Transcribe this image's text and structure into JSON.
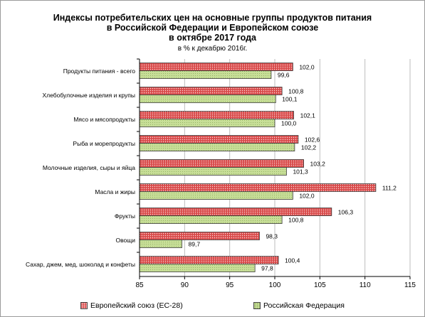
{
  "chart_data": {
    "type": "bar",
    "orientation": "horizontal",
    "title_lines": [
      "Индексы потребительских цен на основные группы продуктов питания",
      "в Российской Федерации и Европейском союзе",
      "в октябре 2017 года"
    ],
    "subtitle": "в % к декабрю 2016г.",
    "categories": [
      "Продукты питания - всего",
      "Хлебобулочные изделия и крупы",
      "Мясо и мясопродукты",
      "Рыба и морепродукты",
      "Молочные изделия, сыры и яйца",
      "Масла и жиры",
      "Фрукты",
      "Овощи",
      "Сахар, джем, мед, шоколад и конфеты"
    ],
    "series": [
      {
        "name": "Европейский союз (ЕС-28)",
        "values": [
          102.0,
          100.8,
          102.1,
          102.6,
          103.2,
          111.2,
          106.3,
          98.3,
          100.4
        ],
        "labels": [
          "102,0",
          "100,8",
          "102,1",
          "102,6",
          "103,2",
          "111,2",
          "106,3",
          "98,3",
          "100,4"
        ],
        "color": "#d84a4a"
      },
      {
        "name": "Российская Федерация",
        "values": [
          99.6,
          100.1,
          100.0,
          102.2,
          101.3,
          102.0,
          100.8,
          89.7,
          97.8
        ],
        "labels": [
          "99,6",
          "100,1",
          "100,0",
          "102,2",
          "101,3",
          "102,0",
          "100,8",
          "89,7",
          "97,8"
        ],
        "color": "#c7de97"
      }
    ],
    "xlim": [
      85,
      115
    ],
    "xticks": [
      85,
      90,
      95,
      100,
      105,
      110,
      115
    ],
    "grid": true,
    "legend_position": "bottom"
  }
}
